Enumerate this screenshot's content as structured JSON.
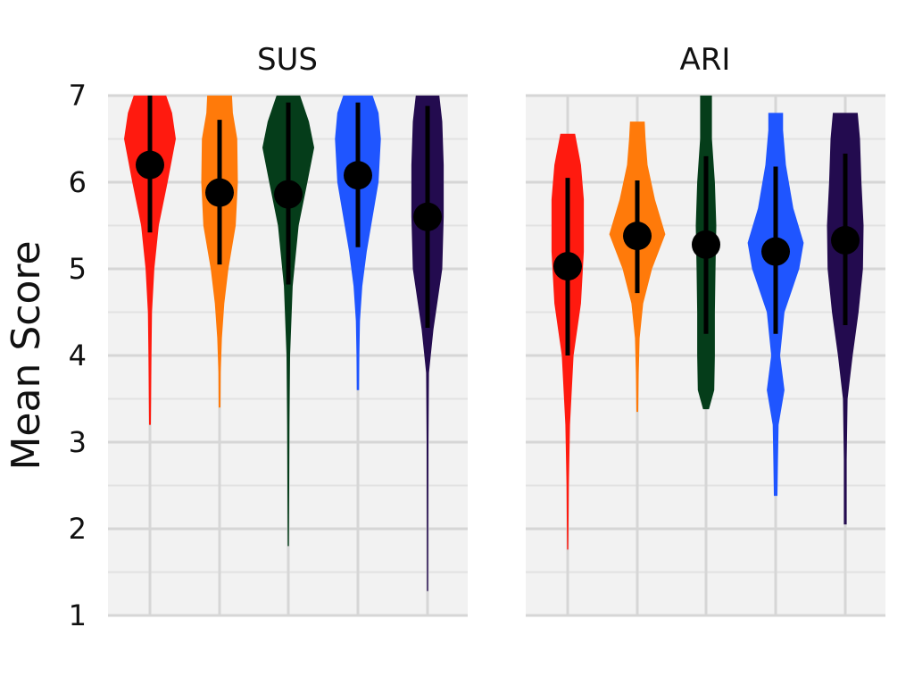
{
  "chart_data": {
    "type": "violin",
    "ylabel": "Mean Score",
    "ylim": [
      1,
      7
    ],
    "yticks": [
      "1",
      "2",
      "3",
      "4",
      "5",
      "6",
      "7"
    ],
    "group_colors": [
      "#ff1a0f",
      "#ff7a0a",
      "#053d1a",
      "#1f55ff",
      "#230b4f"
    ],
    "panels": [
      {
        "title": "SUS",
        "violins": [
          {
            "mean": 6.2,
            "lower": 5.42,
            "upper": 7.0,
            "min": 3.2,
            "max": 7.0,
            "profile": [
              [
                3.2,
                0.03
              ],
              [
                3.5,
                0.04
              ],
              [
                4.0,
                0.05
              ],
              [
                4.5,
                0.07
              ],
              [
                5.0,
                0.15
              ],
              [
                5.5,
                0.3
              ],
              [
                6.0,
                0.6
              ],
              [
                6.5,
                0.88
              ],
              [
                6.8,
                0.75
              ],
              [
                7.0,
                0.55
              ]
            ]
          },
          {
            "mean": 5.88,
            "lower": 5.05,
            "upper": 6.72,
            "min": 3.4,
            "max": 7.0,
            "profile": [
              [
                3.4,
                0.03
              ],
              [
                3.8,
                0.04
              ],
              [
                4.2,
                0.08
              ],
              [
                4.6,
                0.16
              ],
              [
                5.0,
                0.3
              ],
              [
                5.5,
                0.55
              ],
              [
                6.0,
                0.62
              ],
              [
                6.5,
                0.6
              ],
              [
                6.8,
                0.45
              ],
              [
                7.0,
                0.42
              ]
            ]
          },
          {
            "mean": 5.86,
            "lower": 4.82,
            "upper": 6.92,
            "min": 1.8,
            "max": 7.0,
            "profile": [
              [
                1.8,
                0.02
              ],
              [
                2.5,
                0.03
              ],
              [
                3.2,
                0.04
              ],
              [
                4.0,
                0.06
              ],
              [
                4.8,
                0.15
              ],
              [
                5.5,
                0.35
              ],
              [
                6.0,
                0.65
              ],
              [
                6.4,
                0.88
              ],
              [
                6.7,
                0.7
              ],
              [
                7.0,
                0.4
              ]
            ]
          },
          {
            "mean": 6.08,
            "lower": 5.25,
            "upper": 6.92,
            "min": 3.6,
            "max": 7.0,
            "profile": [
              [
                3.6,
                0.04
              ],
              [
                4.0,
                0.05
              ],
              [
                4.4,
                0.07
              ],
              [
                4.8,
                0.15
              ],
              [
                5.2,
                0.3
              ],
              [
                5.6,
                0.5
              ],
              [
                6.0,
                0.7
              ],
              [
                6.5,
                0.78
              ],
              [
                6.8,
                0.7
              ],
              [
                7.0,
                0.5
              ]
            ]
          },
          {
            "mean": 5.6,
            "lower": 4.32,
            "upper": 6.88,
            "min": 1.28,
            "max": 7.0,
            "profile": [
              [
                1.28,
                0.02
              ],
              [
                2.0,
                0.025
              ],
              [
                3.0,
                0.03
              ],
              [
                3.8,
                0.05
              ],
              [
                4.3,
                0.2
              ],
              [
                5.0,
                0.5
              ],
              [
                5.6,
                0.55
              ],
              [
                6.2,
                0.55
              ],
              [
                6.7,
                0.5
              ],
              [
                7.0,
                0.4
              ]
            ]
          }
        ]
      },
      {
        "title": "ARI",
        "violins": [
          {
            "mean": 5.03,
            "lower": 4.0,
            "upper": 6.05,
            "min": 1.76,
            "max": 6.56,
            "profile": [
              [
                1.76,
                0.02
              ],
              [
                2.5,
                0.04
              ],
              [
                3.2,
                0.08
              ],
              [
                4.0,
                0.2
              ],
              [
                4.6,
                0.45
              ],
              [
                5.2,
                0.55
              ],
              [
                5.8,
                0.55
              ],
              [
                6.2,
                0.45
              ],
              [
                6.56,
                0.25
              ]
            ]
          },
          {
            "mean": 5.38,
            "lower": 4.72,
            "upper": 6.02,
            "min": 3.35,
            "max": 6.7,
            "profile": [
              [
                3.35,
                0.03
              ],
              [
                3.8,
                0.05
              ],
              [
                4.2,
                0.08
              ],
              [
                4.6,
                0.2
              ],
              [
                5.0,
                0.5
              ],
              [
                5.4,
                0.95
              ],
              [
                5.8,
                0.6
              ],
              [
                6.2,
                0.35
              ],
              [
                6.5,
                0.28
              ],
              [
                6.7,
                0.25
              ]
            ]
          },
          {
            "mean": 5.28,
            "lower": 4.25,
            "upper": 6.3,
            "min": 3.38,
            "max": 7.0,
            "profile": [
              [
                3.38,
                0.1
              ],
              [
                3.6,
                0.28
              ],
              [
                4.0,
                0.3
              ],
              [
                4.5,
                0.3
              ],
              [
                5.0,
                0.32
              ],
              [
                5.5,
                0.35
              ],
              [
                6.0,
                0.3
              ],
              [
                6.5,
                0.2
              ],
              [
                7.0,
                0.2
              ]
            ]
          },
          {
            "mean": 5.2,
            "lower": 4.25,
            "upper": 6.18,
            "min": 2.38,
            "max": 6.8,
            "profile": [
              [
                2.38,
                0.06
              ],
              [
                2.8,
                0.08
              ],
              [
                3.2,
                0.1
              ],
              [
                3.6,
                0.3
              ],
              [
                4.0,
                0.15
              ],
              [
                4.5,
                0.3
              ],
              [
                5.0,
                0.8
              ],
              [
                5.3,
                0.95
              ],
              [
                5.7,
                0.6
              ],
              [
                6.2,
                0.35
              ],
              [
                6.6,
                0.25
              ],
              [
                6.8,
                0.25
              ]
            ]
          },
          {
            "mean": 5.33,
            "lower": 4.35,
            "upper": 6.33,
            "min": 2.05,
            "max": 6.8,
            "profile": [
              [
                2.05,
                0.05
              ],
              [
                2.8,
                0.05
              ],
              [
                3.5,
                0.08
              ],
              [
                4.0,
                0.25
              ],
              [
                4.5,
                0.45
              ],
              [
                5.0,
                0.6
              ],
              [
                5.5,
                0.62
              ],
              [
                6.0,
                0.55
              ],
              [
                6.5,
                0.5
              ],
              [
                6.8,
                0.42
              ]
            ]
          }
        ]
      }
    ]
  }
}
